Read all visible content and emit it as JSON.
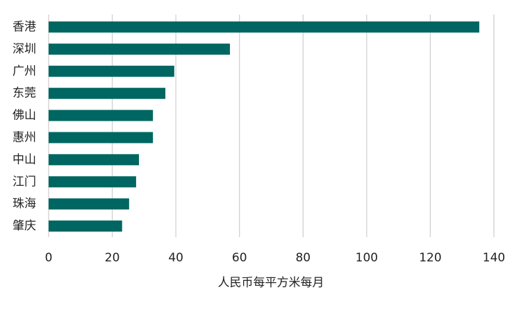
{
  "chart_data": {
    "type": "hbar",
    "categories": [
      "香港",
      "深圳",
      "广州",
      "东莞",
      "佛山",
      "惠州",
      "中山",
      "江门",
      "珠海",
      "肇庆"
    ],
    "values": [
      135.4,
      57,
      39.5,
      36.7,
      32.8,
      32.8,
      28.4,
      27.5,
      25.3,
      23.1
    ],
    "color": "#006661",
    "xlim": [
      0,
      140
    ],
    "xticks": [
      0,
      20,
      40,
      60,
      80,
      100,
      120,
      140
    ],
    "x_label": "人民币每平方米每月",
    "grid": true
  }
}
